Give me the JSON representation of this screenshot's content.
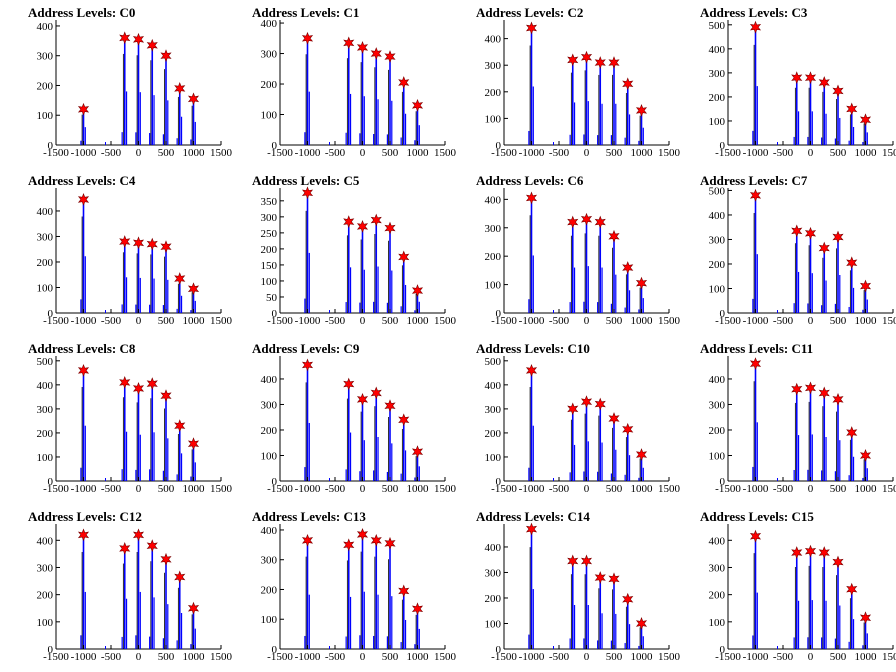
{
  "chart_data": [
    {
      "title": "Address Levels: C0",
      "type": "histogram",
      "xlim": [
        -1500,
        1500
      ],
      "ylim": [
        0,
        420
      ],
      "xticks": [
        -1500,
        -1000,
        -500,
        0,
        500,
        1000,
        1500
      ],
      "xtick_labels": [
        "-1500",
        "-1000",
        "-500",
        "0",
        "500",
        "1000",
        "1500"
      ],
      "yticks": [
        0,
        100,
        200,
        300,
        400
      ],
      "peaks": [
        {
          "x": -1000,
          "y": 120
        },
        {
          "x": -250,
          "y": 360
        },
        {
          "x": 0,
          "y": 355
        },
        {
          "x": 250,
          "y": 335
        },
        {
          "x": 500,
          "y": 300
        },
        {
          "x": 750,
          "y": 190
        },
        {
          "x": 1000,
          "y": 155
        }
      ]
    },
    {
      "title": "Address Levels: C1",
      "type": "histogram",
      "xlim": [
        -1500,
        1500
      ],
      "ylim": [
        0,
        410
      ],
      "xticks": [
        -1500,
        -1000,
        -500,
        0,
        500,
        1000,
        1500
      ],
      "xtick_labels": [
        "-1500",
        "-1000",
        "-500",
        "0",
        "500",
        "1000",
        "1500"
      ],
      "yticks": [
        0,
        100,
        200,
        300,
        400
      ],
      "peaks": [
        {
          "x": -1000,
          "y": 350
        },
        {
          "x": -250,
          "y": 335
        },
        {
          "x": 0,
          "y": 320
        },
        {
          "x": 250,
          "y": 300
        },
        {
          "x": 500,
          "y": 290
        },
        {
          "x": 750,
          "y": 205
        },
        {
          "x": 1000,
          "y": 130
        }
      ]
    },
    {
      "title": "Address Levels: C2",
      "type": "histogram",
      "xlim": [
        -1500,
        1500
      ],
      "ylim": [
        0,
        470
      ],
      "xticks": [
        -1500,
        -1000,
        -500,
        0,
        500,
        1000,
        1500
      ],
      "xtick_labels": [
        "-1500",
        "-1000",
        "-500",
        "0",
        "500",
        "1000",
        "1500"
      ],
      "yticks": [
        0,
        100,
        200,
        300,
        400
      ],
      "peaks": [
        {
          "x": -1000,
          "y": 440
        },
        {
          "x": -250,
          "y": 320
        },
        {
          "x": 0,
          "y": 330
        },
        {
          "x": 250,
          "y": 310
        },
        {
          "x": 500,
          "y": 310
        },
        {
          "x": 750,
          "y": 230
        },
        {
          "x": 1000,
          "y": 130
        }
      ]
    },
    {
      "title": "Address Levels: C3",
      "type": "histogram",
      "xlim": [
        -1500,
        1500
      ],
      "ylim": [
        0,
        520
      ],
      "xticks": [
        -1500,
        -1000,
        -500,
        0,
        500,
        1000,
        1500
      ],
      "xtick_labels": [
        "-1500",
        "-1000",
        "-500",
        "0",
        "500",
        "1000",
        "1500"
      ],
      "yticks": [
        0,
        100,
        200,
        300,
        400,
        500
      ],
      "peaks": [
        {
          "x": -1000,
          "y": 490
        },
        {
          "x": -250,
          "y": 280
        },
        {
          "x": 0,
          "y": 280
        },
        {
          "x": 250,
          "y": 260
        },
        {
          "x": 500,
          "y": 225
        },
        {
          "x": 750,
          "y": 150
        },
        {
          "x": 1000,
          "y": 105
        }
      ]
    },
    {
      "title": "Address Levels: C4",
      "type": "histogram",
      "xlim": [
        -1500,
        1500
      ],
      "ylim": [
        0,
        490
      ],
      "xticks": [
        -1500,
        -1000,
        -500,
        0,
        500,
        1000,
        1500
      ],
      "xtick_labels": [
        "-1500",
        "-1000",
        "-500",
        "0",
        "500",
        "1000",
        "1500"
      ],
      "yticks": [
        0,
        100,
        200,
        300,
        400
      ],
      "peaks": [
        {
          "x": -1000,
          "y": 445
        },
        {
          "x": -250,
          "y": 280
        },
        {
          "x": 0,
          "y": 275
        },
        {
          "x": 250,
          "y": 270
        },
        {
          "x": 500,
          "y": 260
        },
        {
          "x": 750,
          "y": 135
        },
        {
          "x": 1000,
          "y": 95
        }
      ]
    },
    {
      "title": "Address Levels: C5",
      "type": "histogram",
      "xlim": [
        -1500,
        1500
      ],
      "ylim": [
        0,
        390
      ],
      "xticks": [
        -1500,
        -1000,
        -500,
        0,
        500,
        1000,
        1500
      ],
      "xtick_labels": [
        "-1500",
        "-1000",
        "-500",
        "0",
        "500",
        "1000",
        "1500"
      ],
      "yticks": [
        0,
        50,
        100,
        150,
        200,
        250,
        300,
        350
      ],
      "peaks": [
        {
          "x": -1000,
          "y": 375
        },
        {
          "x": -250,
          "y": 285
        },
        {
          "x": 0,
          "y": 270
        },
        {
          "x": 250,
          "y": 290
        },
        {
          "x": 500,
          "y": 265
        },
        {
          "x": 750,
          "y": 175
        },
        {
          "x": 1000,
          "y": 70
        }
      ]
    },
    {
      "title": "Address Levels: C6",
      "type": "histogram",
      "xlim": [
        -1500,
        1500
      ],
      "ylim": [
        0,
        440
      ],
      "xticks": [
        -1500,
        -1000,
        -500,
        0,
        500,
        1000,
        1500
      ],
      "xtick_labels": [
        "-1500",
        "-1000",
        "-500",
        "0",
        "500",
        "1000",
        "1500"
      ],
      "yticks": [
        0,
        100,
        200,
        300,
        400
      ],
      "peaks": [
        {
          "x": -1000,
          "y": 405
        },
        {
          "x": -250,
          "y": 320
        },
        {
          "x": 0,
          "y": 330
        },
        {
          "x": 250,
          "y": 320
        },
        {
          "x": 500,
          "y": 270
        },
        {
          "x": 750,
          "y": 160
        },
        {
          "x": 1000,
          "y": 105
        }
      ]
    },
    {
      "title": "Address Levels: C7",
      "type": "histogram",
      "xlim": [
        -1500,
        1500
      ],
      "ylim": [
        0,
        510
      ],
      "xticks": [
        -1500,
        -1000,
        -500,
        0,
        500,
        1000,
        1500
      ],
      "xtick_labels": [
        "-1500",
        "-1000",
        "-500",
        "0",
        "500",
        "1000",
        "1500"
      ],
      "yticks": [
        0,
        100,
        200,
        300,
        400,
        500
      ],
      "peaks": [
        {
          "x": -1000,
          "y": 480
        },
        {
          "x": -250,
          "y": 335
        },
        {
          "x": 0,
          "y": 325
        },
        {
          "x": 250,
          "y": 265
        },
        {
          "x": 500,
          "y": 310
        },
        {
          "x": 750,
          "y": 205
        },
        {
          "x": 1000,
          "y": 110
        }
      ]
    },
    {
      "title": "Address Levels: C8",
      "type": "histogram",
      "xlim": [
        -1500,
        1500
      ],
      "ylim": [
        0,
        520
      ],
      "xticks": [
        -1500,
        -1000,
        -500,
        0,
        500,
        1000,
        1500
      ],
      "xtick_labels": [
        "-1500",
        "-1000",
        "-500",
        "0",
        "500",
        "1000",
        "1500"
      ],
      "yticks": [
        0,
        100,
        200,
        300,
        400,
        500
      ],
      "peaks": [
        {
          "x": -1000,
          "y": 460
        },
        {
          "x": -250,
          "y": 410
        },
        {
          "x": 0,
          "y": 385
        },
        {
          "x": 250,
          "y": 405
        },
        {
          "x": 500,
          "y": 355
        },
        {
          "x": 750,
          "y": 230
        },
        {
          "x": 1000,
          "y": 155
        }
      ]
    },
    {
      "title": "Address Levels: C9",
      "type": "histogram",
      "xlim": [
        -1500,
        1500
      ],
      "ylim": [
        0,
        490
      ],
      "xticks": [
        -1500,
        -1000,
        -500,
        0,
        500,
        1000,
        1500
      ],
      "xtick_labels": [
        "-1500",
        "-1000",
        "-500",
        "0",
        "500",
        "1000",
        "1500"
      ],
      "yticks": [
        0,
        100,
        200,
        300,
        400
      ],
      "peaks": [
        {
          "x": -1000,
          "y": 455
        },
        {
          "x": -250,
          "y": 380
        },
        {
          "x": 0,
          "y": 320
        },
        {
          "x": 250,
          "y": 345
        },
        {
          "x": 500,
          "y": 295
        },
        {
          "x": 750,
          "y": 240
        },
        {
          "x": 1000,
          "y": 115
        }
      ]
    },
    {
      "title": "Address Levels: C10",
      "type": "histogram",
      "xlim": [
        -1500,
        1500
      ],
      "ylim": [
        0,
        520
      ],
      "xticks": [
        -1500,
        -1000,
        -500,
        0,
        500,
        1000,
        1500
      ],
      "xtick_labels": [
        "-1500",
        "-1000",
        "-500",
        "0",
        "500",
        "1000",
        "1500"
      ],
      "yticks": [
        0,
        100,
        200,
        300,
        400,
        500
      ],
      "peaks": [
        {
          "x": -1000,
          "y": 460
        },
        {
          "x": -250,
          "y": 300
        },
        {
          "x": 0,
          "y": 330
        },
        {
          "x": 250,
          "y": 320
        },
        {
          "x": 500,
          "y": 260
        },
        {
          "x": 750,
          "y": 215
        },
        {
          "x": 1000,
          "y": 110
        }
      ]
    },
    {
      "title": "Address Levels: C11",
      "type": "histogram",
      "xlim": [
        -1500,
        1500
      ],
      "ylim": [
        0,
        490
      ],
      "xticks": [
        -1500,
        -1000,
        -500,
        0,
        500,
        1000,
        1500
      ],
      "xtick_labels": [
        "-1500",
        "-1000",
        "-500",
        "0",
        "500",
        "1000",
        "1500"
      ],
      "yticks": [
        0,
        100,
        200,
        300,
        400
      ],
      "peaks": [
        {
          "x": -1000,
          "y": 460
        },
        {
          "x": -250,
          "y": 360
        },
        {
          "x": 0,
          "y": 365
        },
        {
          "x": 250,
          "y": 345
        },
        {
          "x": 500,
          "y": 320
        },
        {
          "x": 750,
          "y": 190
        },
        {
          "x": 1000,
          "y": 100
        }
      ]
    },
    {
      "title": "Address Levels: C12",
      "type": "histogram",
      "xlim": [
        -1500,
        1500
      ],
      "ylim": [
        0,
        460
      ],
      "xticks": [
        -1500,
        -1000,
        -500,
        0,
        500,
        1000,
        1500
      ],
      "xtick_labels": [
        "-1500",
        "-1000",
        "-500",
        "0",
        "500",
        "1000",
        "1500"
      ],
      "yticks": [
        0,
        100,
        200,
        300,
        400
      ],
      "peaks": [
        {
          "x": -1000,
          "y": 420
        },
        {
          "x": -250,
          "y": 370
        },
        {
          "x": 0,
          "y": 420
        },
        {
          "x": 250,
          "y": 380
        },
        {
          "x": 500,
          "y": 330
        },
        {
          "x": 750,
          "y": 265
        },
        {
          "x": 1000,
          "y": 150
        }
      ]
    },
    {
      "title": "Address Levels: C13",
      "type": "histogram",
      "xlim": [
        -1500,
        1500
      ],
      "ylim": [
        0,
        420
      ],
      "xticks": [
        -1500,
        -1000,
        -500,
        0,
        500,
        1000,
        1500
      ],
      "xtick_labels": [
        "-1500",
        "-1000",
        "-500",
        "0",
        "500",
        "1000",
        "1500"
      ],
      "yticks": [
        0,
        100,
        200,
        300,
        400
      ],
      "peaks": [
        {
          "x": -1000,
          "y": 365
        },
        {
          "x": -250,
          "y": 350
        },
        {
          "x": 0,
          "y": 385
        },
        {
          "x": 250,
          "y": 365
        },
        {
          "x": 500,
          "y": 355
        },
        {
          "x": 750,
          "y": 195
        },
        {
          "x": 1000,
          "y": 135
        }
      ]
    },
    {
      "title": "Address Levels: C14",
      "type": "histogram",
      "xlim": [
        -1500,
        1500
      ],
      "ylim": [
        0,
        490
      ],
      "xticks": [
        -1500,
        -1000,
        -500,
        0,
        500,
        1000,
        1500
      ],
      "xtick_labels": [
        "-1500",
        "-1000",
        "-500",
        "0",
        "500",
        "1000",
        "1500"
      ],
      "yticks": [
        0,
        100,
        200,
        300,
        400
      ],
      "peaks": [
        {
          "x": -1000,
          "y": 470
        },
        {
          "x": -250,
          "y": 345
        },
        {
          "x": 0,
          "y": 345
        },
        {
          "x": 250,
          "y": 280
        },
        {
          "x": 500,
          "y": 275
        },
        {
          "x": 750,
          "y": 195
        },
        {
          "x": 1000,
          "y": 100
        }
      ]
    },
    {
      "title": "Address Levels: C15",
      "type": "histogram",
      "xlim": [
        -1500,
        1500
      ],
      "ylim": [
        0,
        460
      ],
      "xticks": [
        -1500,
        -1000,
        -500,
        0,
        500,
        1000,
        1500
      ],
      "xtick_labels": [
        "-1500",
        "-1000",
        "-500",
        "0",
        "500",
        "1000",
        "1500"
      ],
      "yticks": [
        0,
        100,
        200,
        300,
        400
      ],
      "peaks": [
        {
          "x": -1000,
          "y": 415
        },
        {
          "x": -250,
          "y": 355
        },
        {
          "x": 0,
          "y": 360
        },
        {
          "x": 250,
          "y": 355
        },
        {
          "x": 500,
          "y": 320
        },
        {
          "x": 750,
          "y": 220
        },
        {
          "x": 1000,
          "y": 115
        }
      ]
    }
  ],
  "colors": {
    "bars": "#0000ff",
    "marker": "#ff0000",
    "marker_edge": "#7a0000",
    "axis": "#000000"
  }
}
